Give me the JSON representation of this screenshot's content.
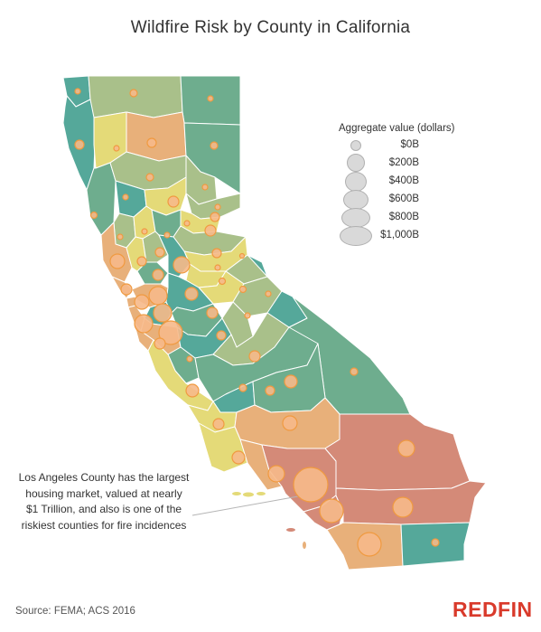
{
  "title": "Wildfire Risk by County in California",
  "legend": {
    "title": "Aggregate value (dollars)",
    "items": [
      {
        "label": "$0B",
        "value_billions": 0
      },
      {
        "label": "$200B",
        "value_billions": 200
      },
      {
        "label": "$400B",
        "value_billions": 400
      },
      {
        "label": "$600B",
        "value_billions": 600
      },
      {
        "label": "$800B",
        "value_billions": 800
      },
      {
        "label": "$1,000B",
        "value_billions": 1000
      }
    ]
  },
  "annotation": "Los Angeles County has the largest housing market, valued at nearly $1 Trillion, and also is one of the riskiest counties for fire incidences",
  "source": "Source: FEMA; ACS 2016",
  "brand": "REDFIN",
  "colors": {
    "risk_low": "#55a89a",
    "risk_medium_low": "#a9c08a",
    "risk_medium": "#e4da78",
    "risk_high": "#e8b07a",
    "risk_highest": "#d48a78",
    "bubble_fill": "#f6b98a",
    "bubble_stroke": "#f09a40",
    "state_border": "#ffffff"
  }
}
